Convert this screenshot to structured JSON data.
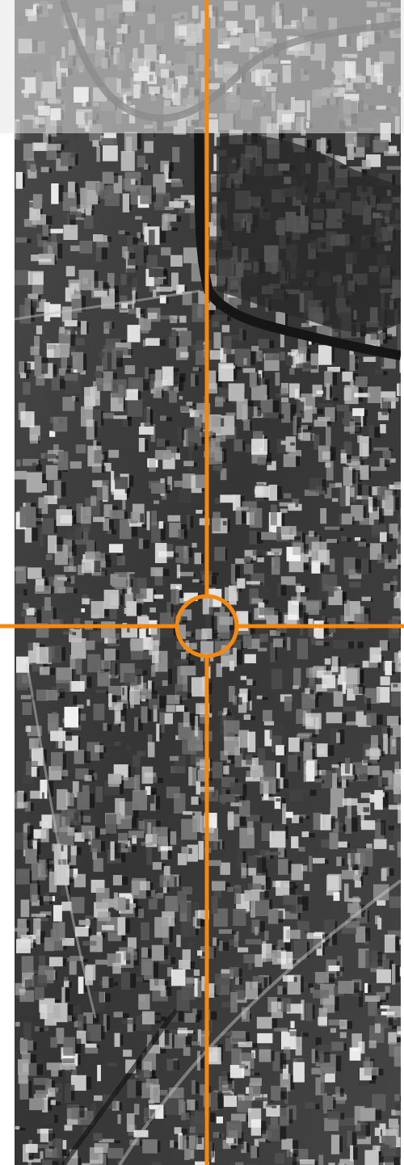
{
  "image": {
    "subject": "aerial-city-view",
    "tone": "grayscale",
    "marker_icon": "crosshair-target-icon"
  },
  "colors": {
    "crosshair": "#f7880f",
    "veil": "#e6e6e6",
    "background": "#ffffff"
  }
}
